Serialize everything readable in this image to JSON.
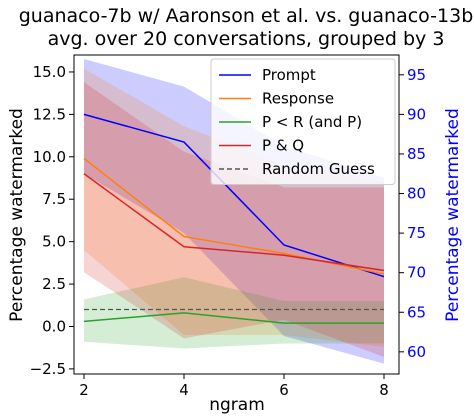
{
  "chart_data": {
    "type": "line",
    "title_line1": "guanaco-7b w/ Aaronson et al. vs. guanaco-13b",
    "title_line2": "avg. over 20 conversations, grouped by 3",
    "xlabel": "ngram",
    "ylabel": "Percentage watermarked",
    "ylabel_right": "Percentage watermarked",
    "x": [
      2,
      4,
      6,
      8
    ],
    "x_ticks": [
      "2",
      "4",
      "6",
      "8"
    ],
    "xlim": [
      1.8,
      8.3
    ],
    "ylim": [
      -2.8,
      16.0
    ],
    "y_ticks": [
      "−2.5",
      "0.0",
      "2.5",
      "5.0",
      "7.5",
      "10.0",
      "12.5",
      "15.0"
    ],
    "y_tick_values": [
      -2.5,
      0,
      2.5,
      5,
      7.5,
      10,
      12.5,
      15
    ],
    "ylim_right": [
      57.2,
      97.5
    ],
    "y_ticks_right": [
      "60",
      "65",
      "70",
      "75",
      "80",
      "85",
      "90",
      "95"
    ],
    "y_tick_values_right": [
      60,
      65,
      70,
      75,
      80,
      85,
      90,
      95
    ],
    "legend_position": "top-right",
    "grid": false,
    "series": [
      {
        "name": "Prompt",
        "axis": "right",
        "color": "#0000ff",
        "values": [
          90.0,
          86.5,
          73.5,
          69.5
        ],
        "lower": [
          82.5,
          75.0,
          62.0,
          58.5
        ],
        "upper": [
          97.0,
          93.5,
          86.0,
          82.0
        ]
      },
      {
        "name": "Response",
        "axis": "left",
        "color": "#ff7f0e",
        "values": [
          9.9,
          5.3,
          4.3,
          3.1
        ],
        "lower": [
          4.5,
          -0.5,
          -0.5,
          -1.2
        ],
        "upper": [
          15.2,
          11.8,
          9.5,
          8.5
        ]
      },
      {
        "name": "P < R (and P)",
        "axis": "left",
        "color": "#2ca02c",
        "values": [
          0.3,
          0.8,
          0.2,
          0.2
        ],
        "lower": [
          -0.9,
          -1.3,
          -1.0,
          -1.0
        ],
        "upper": [
          1.6,
          2.9,
          1.5,
          1.5
        ]
      },
      {
        "name": "P & Q",
        "axis": "left",
        "color": "#d62728",
        "values": [
          9.0,
          4.7,
          4.2,
          3.3
        ],
        "lower": [
          3.2,
          -0.7,
          0.4,
          -1.8
        ],
        "upper": [
          14.4,
          10.3,
          8.2,
          8.2
        ]
      },
      {
        "name": "Random Guess",
        "axis": "left",
        "color": "#555555",
        "dashed": true,
        "values": [
          1.0,
          1.0,
          1.0,
          1.0
        ]
      }
    ]
  }
}
